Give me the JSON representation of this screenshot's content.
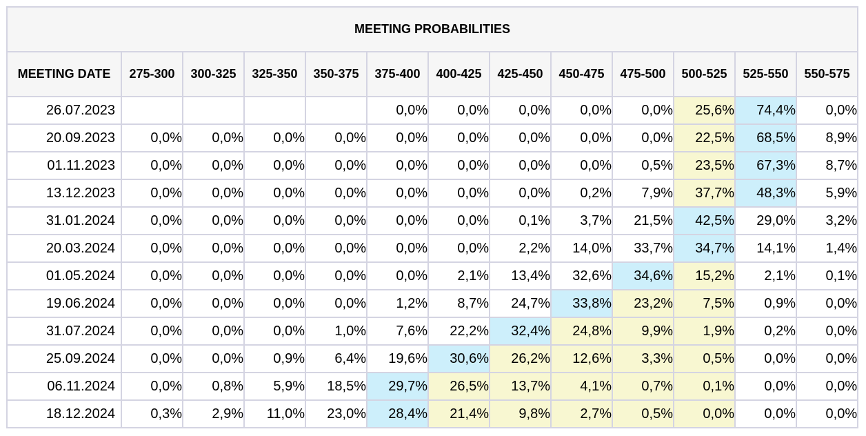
{
  "title": "MEETING PROBABILITIES",
  "columns": [
    "MEETING DATE",
    "275-300",
    "300-325",
    "325-350",
    "350-375",
    "375-400",
    "400-425",
    "425-450",
    "450-475",
    "475-500",
    "500-525",
    "525-550",
    "550-575"
  ],
  "highlight_colors": {
    "max": "#cdeffb",
    "near": "#f8f7d1"
  },
  "chart_data": {
    "type": "table",
    "title": "MEETING PROBABILITIES",
    "rows": [
      {
        "date": "26.07.2023",
        "cells": [
          "",
          "",
          "",
          "",
          "0,0%",
          "0,0%",
          "0,0%",
          "0,0%",
          "0,0%",
          "25,6%",
          "74,4%",
          "0,0%"
        ],
        "highlight": {
          "9": "near",
          "10": "max"
        }
      },
      {
        "date": "20.09.2023",
        "cells": [
          "0,0%",
          "0,0%",
          "0,0%",
          "0,0%",
          "0,0%",
          "0,0%",
          "0,0%",
          "0,0%",
          "0,0%",
          "22,5%",
          "68,5%",
          "8,9%"
        ],
        "highlight": {
          "9": "near",
          "10": "max"
        }
      },
      {
        "date": "01.11.2023",
        "cells": [
          "0,0%",
          "0,0%",
          "0,0%",
          "0,0%",
          "0,0%",
          "0,0%",
          "0,0%",
          "0,0%",
          "0,5%",
          "23,5%",
          "67,3%",
          "8,7%"
        ],
        "highlight": {
          "9": "near",
          "10": "max"
        }
      },
      {
        "date": "13.12.2023",
        "cells": [
          "0,0%",
          "0,0%",
          "0,0%",
          "0,0%",
          "0,0%",
          "0,0%",
          "0,0%",
          "0,2%",
          "7,9%",
          "37,7%",
          "48,3%",
          "5,9%"
        ],
        "highlight": {
          "9": "near",
          "10": "max"
        }
      },
      {
        "date": "31.01.2024",
        "cells": [
          "0,0%",
          "0,0%",
          "0,0%",
          "0,0%",
          "0,0%",
          "0,0%",
          "0,1%",
          "3,7%",
          "21,5%",
          "42,5%",
          "29,0%",
          "3,2%"
        ],
        "highlight": {
          "9": "max"
        }
      },
      {
        "date": "20.03.2024",
        "cells": [
          "0,0%",
          "0,0%",
          "0,0%",
          "0,0%",
          "0,0%",
          "0,0%",
          "2,2%",
          "14,0%",
          "33,7%",
          "34,7%",
          "14,1%",
          "1,4%"
        ],
        "highlight": {
          "9": "max"
        }
      },
      {
        "date": "01.05.2024",
        "cells": [
          "0,0%",
          "0,0%",
          "0,0%",
          "0,0%",
          "0,0%",
          "2,1%",
          "13,4%",
          "32,6%",
          "34,6%",
          "15,2%",
          "2,1%",
          "0,1%"
        ],
        "highlight": {
          "8": "max",
          "9": "near"
        }
      },
      {
        "date": "19.06.2024",
        "cells": [
          "0,0%",
          "0,0%",
          "0,0%",
          "0,0%",
          "1,2%",
          "8,7%",
          "24,7%",
          "33,8%",
          "23,2%",
          "7,5%",
          "0,9%",
          "0,0%"
        ],
        "highlight": {
          "7": "max",
          "8": "near",
          "9": "near"
        }
      },
      {
        "date": "31.07.2024",
        "cells": [
          "0,0%",
          "0,0%",
          "0,0%",
          "1,0%",
          "7,6%",
          "22,2%",
          "32,4%",
          "24,8%",
          "9,9%",
          "1,9%",
          "0,2%",
          "0,0%"
        ],
        "highlight": {
          "6": "max",
          "7": "near",
          "8": "near",
          "9": "near"
        }
      },
      {
        "date": "25.09.2024",
        "cells": [
          "0,0%",
          "0,0%",
          "0,9%",
          "6,4%",
          "19,6%",
          "30,6%",
          "26,2%",
          "12,6%",
          "3,3%",
          "0,5%",
          "0,0%",
          "0,0%"
        ],
        "highlight": {
          "5": "max",
          "6": "near",
          "7": "near",
          "8": "near",
          "9": "near"
        }
      },
      {
        "date": "06.11.2024",
        "cells": [
          "0,0%",
          "0,8%",
          "5,9%",
          "18,5%",
          "29,7%",
          "26,5%",
          "13,7%",
          "4,1%",
          "0,7%",
          "0,1%",
          "0,0%",
          "0,0%"
        ],
        "highlight": {
          "4": "max",
          "5": "near",
          "6": "near",
          "7": "near",
          "8": "near",
          "9": "near"
        }
      },
      {
        "date": "18.12.2024",
        "cells": [
          "0,3%",
          "2,9%",
          "11,0%",
          "23,0%",
          "28,4%",
          "21,4%",
          "9,8%",
          "2,7%",
          "0,5%",
          "0,0%",
          "0,0%",
          "0,0%"
        ],
        "highlight": {
          "4": "max",
          "5": "near",
          "6": "near",
          "7": "near",
          "8": "near",
          "9": "near"
        }
      }
    ]
  }
}
